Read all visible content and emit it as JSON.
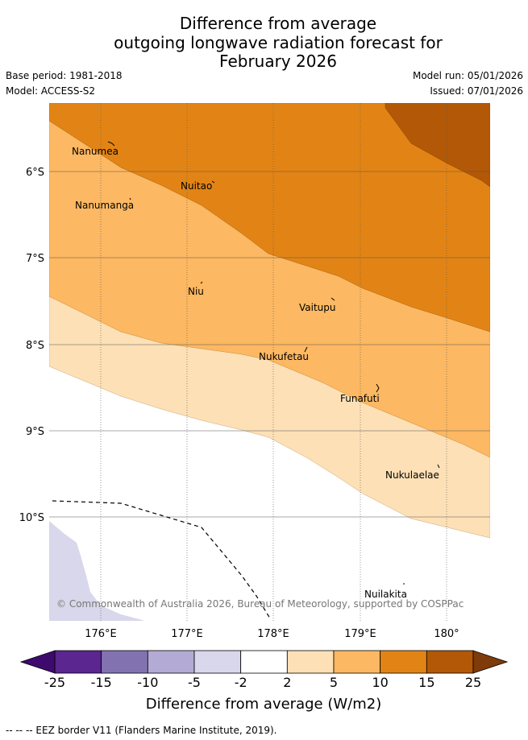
{
  "header": {
    "title_lines": [
      "Difference from average",
      "outgoing longwave radiation forecast for",
      "February 2026"
    ],
    "base_period": "Base period: 1981-2018",
    "model": "Model: ACCESS-S2",
    "model_run": "Model run: 05/01/2026",
    "issued": "Issued: 07/01/2026"
  },
  "map": {
    "lat_labels": [
      "6°S",
      "7°S",
      "8°S",
      "9°S",
      "10°S"
    ],
    "lon_labels": [
      "176°E",
      "177°E",
      "178°E",
      "179°E",
      "180°"
    ],
    "places": [
      {
        "name": "Nanumea"
      },
      {
        "name": "Nuitao"
      },
      {
        "name": "Nanumanga"
      },
      {
        "name": "Niu"
      },
      {
        "name": "Vaitupu"
      },
      {
        "name": "Nukufetau"
      },
      {
        "name": "Funafuti"
      },
      {
        "name": "Nukulaelae"
      },
      {
        "name": "Nuilakita"
      }
    ],
    "copyright": "© Commonwealth of Australia 2026, Bureau of Meteorology, supported by COSPPac"
  },
  "legend": {
    "ticks": [
      "-25",
      "-15",
      "-10",
      "-5",
      "-2",
      "2",
      "5",
      "10",
      "15",
      "25"
    ],
    "colors": [
      "#5b2690",
      "#8273b0",
      "#b3aad5",
      "#d8d7eb",
      "#ffffff",
      "#fde0b6",
      "#fcb862",
      "#e28415",
      "#b35806"
    ],
    "low_extend_color": "#3f0a6e",
    "high_extend_color": "#7f3b08",
    "label": "Difference from average (W/m2)"
  },
  "footnote": "--  --  -- EEZ border V11 (Flanders Marine Institute, 2019)."
}
